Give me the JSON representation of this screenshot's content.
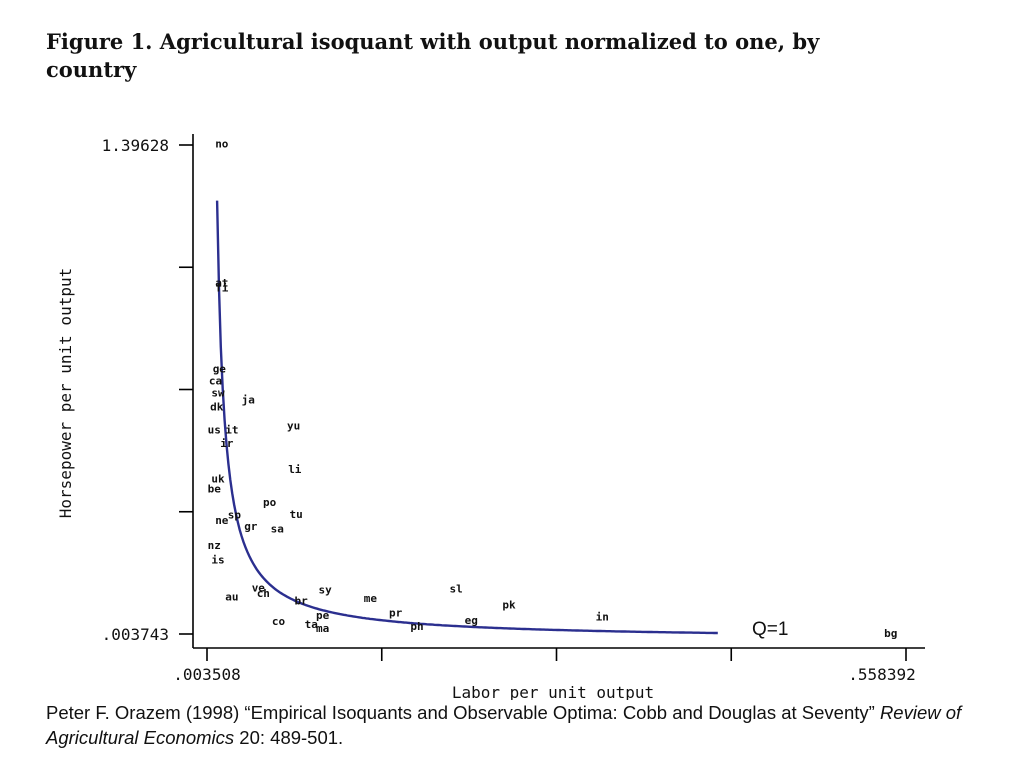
{
  "figure": {
    "title_line1": "Figure 1.  Agricultural isoquant with output normalized to one, by",
    "title_line2": "country"
  },
  "citation": {
    "text_before": "Peter F. Orazem (1998) “Empirical Isoquants and Observable Optima: Cobb and Douglas at Seventy” ",
    "journal": "Review of Agricultural Economics",
    "text_after": " 20: 489-501."
  },
  "chart_data": {
    "type": "scatter",
    "xlabel": "Labor per unit output",
    "ylabel": "Horsepower per unit output",
    "xlim": [
      0.003508,
      0.558392
    ],
    "ylim": [
      0.003743,
      1.39628
    ],
    "x_tick_labels": [
      ".003508",
      ".558392"
    ],
    "y_tick_labels": [
      ".003743",
      "1.39628"
    ],
    "x_tick_count": 5,
    "y_tick_count": 5,
    "curve_label": "Q=1",
    "curve_color": "#2b2f8f",
    "points": [
      {
        "label": "no",
        "x": 0.01,
        "y": 1.4
      },
      {
        "label": "at",
        "x": 0.01,
        "y": 1.005
      },
      {
        "label": "fi",
        "x": 0.01,
        "y": 0.99
      },
      {
        "label": "ge",
        "x": 0.008,
        "y": 0.76
      },
      {
        "label": "ca",
        "x": 0.005,
        "y": 0.725
      },
      {
        "label": "sw",
        "x": 0.007,
        "y": 0.692
      },
      {
        "label": "dk",
        "x": 0.006,
        "y": 0.652
      },
      {
        "label": "ja",
        "x": 0.031,
        "y": 0.672
      },
      {
        "label": "yu",
        "x": 0.067,
        "y": 0.598
      },
      {
        "label": "us",
        "x": 0.004,
        "y": 0.586
      },
      {
        "label": "it",
        "x": 0.018,
        "y": 0.586
      },
      {
        "label": "ir",
        "x": 0.014,
        "y": 0.547
      },
      {
        "label": "li",
        "x": 0.068,
        "y": 0.474
      },
      {
        "label": "uk",
        "x": 0.007,
        "y": 0.446
      },
      {
        "label": "be",
        "x": 0.004,
        "y": 0.418
      },
      {
        "label": "po",
        "x": 0.048,
        "y": 0.38
      },
      {
        "label": "tu",
        "x": 0.069,
        "y": 0.346
      },
      {
        "label": "sp",
        "x": 0.02,
        "y": 0.344
      },
      {
        "label": "ne",
        "x": 0.01,
        "y": 0.328
      },
      {
        "label": "gr",
        "x": 0.033,
        "y": 0.312
      },
      {
        "label": "sa",
        "x": 0.054,
        "y": 0.304
      },
      {
        "label": "nz",
        "x": 0.004,
        "y": 0.257
      },
      {
        "label": "is",
        "x": 0.007,
        "y": 0.216
      },
      {
        "label": "ve",
        "x": 0.039,
        "y": 0.136
      },
      {
        "label": "ch",
        "x": 0.043,
        "y": 0.121
      },
      {
        "label": "au",
        "x": 0.018,
        "y": 0.11
      },
      {
        "label": "br",
        "x": 0.073,
        "y": 0.099
      },
      {
        "label": "sy",
        "x": 0.092,
        "y": 0.131
      },
      {
        "label": "me",
        "x": 0.128,
        "y": 0.106
      },
      {
        "label": "sl",
        "x": 0.196,
        "y": 0.134
      },
      {
        "label": "pk",
        "x": 0.238,
        "y": 0.088
      },
      {
        "label": "pe",
        "x": 0.09,
        "y": 0.058
      },
      {
        "label": "co",
        "x": 0.055,
        "y": 0.041
      },
      {
        "label": "ta",
        "x": 0.081,
        "y": 0.032
      },
      {
        "label": "ma",
        "x": 0.09,
        "y": 0.021
      },
      {
        "label": "pr",
        "x": 0.148,
        "y": 0.065
      },
      {
        "label": "eg",
        "x": 0.208,
        "y": 0.043
      },
      {
        "label": "ph",
        "x": 0.165,
        "y": 0.026
      },
      {
        "label": "in",
        "x": 0.312,
        "y": 0.053
      },
      {
        "label": "bg",
        "x": 0.541,
        "y": 0.007
      }
    ]
  }
}
